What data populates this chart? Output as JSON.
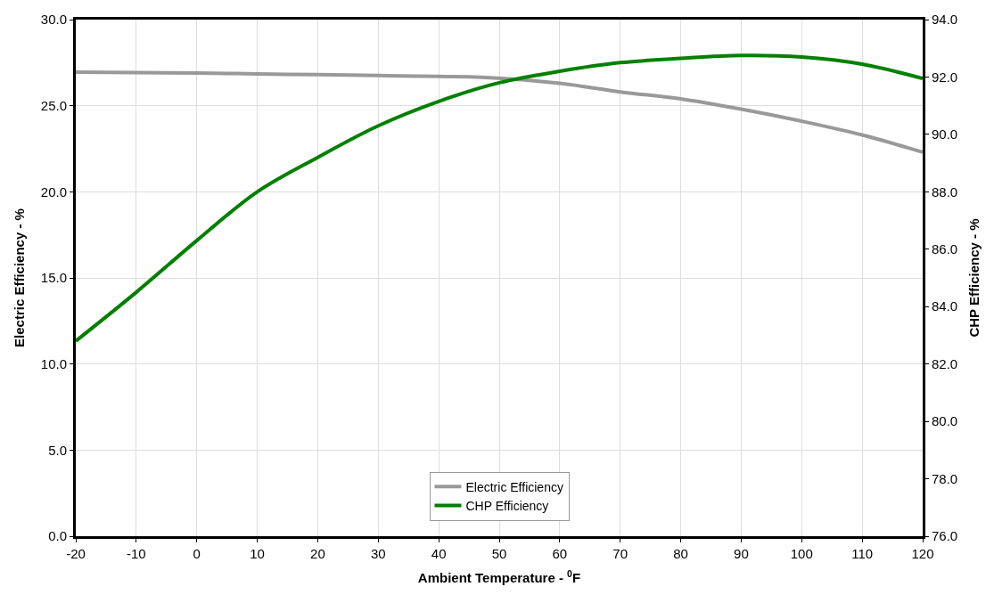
{
  "chart_data": {
    "type": "line",
    "xlabel": "Ambient Temperature - $^{0}$F",
    "ylabel": "Electric Efficiency - %",
    "y2label": "CHP Efficiency - %",
    "x": [
      -20,
      -10,
      0,
      10,
      20,
      30,
      40,
      47,
      60,
      70,
      80,
      90,
      100,
      110,
      120
    ],
    "series": [
      {
        "name": "Electric Efficiency",
        "color": "#999999",
        "values": [
          26.95,
          26.92,
          26.9,
          26.85,
          26.8,
          26.75,
          26.7,
          26.65,
          26.3,
          25.8,
          25.4,
          24.8,
          24.1,
          23.3,
          22.3
        ]
      },
      {
        "name": "CHP Efficiency",
        "color": "#008000",
        "axis": "y2",
        "x": [
          -20,
          -10,
          0,
          10,
          20,
          30,
          40,
          50,
          60,
          70,
          80,
          90,
          100,
          110,
          120
        ],
        "values": [
          82.8,
          84.5,
          86.3,
          88.0,
          89.2,
          90.3,
          91.15,
          91.8,
          92.2,
          92.5,
          92.65,
          92.75,
          92.7,
          92.45,
          91.95
        ]
      }
    ],
    "xlim": [
      -20,
      120
    ],
    "xticks": [
      -20,
      -10,
      0,
      10,
      20,
      30,
      40,
      50,
      60,
      70,
      80,
      90,
      100,
      110,
      120
    ],
    "ylim": [
      0,
      30
    ],
    "yticks": [
      {
        "value": 0,
        "label": "0.0"
      },
      {
        "value": 5,
        "label": "5.0"
      },
      {
        "value": 10,
        "label": "10.0"
      },
      {
        "value": 15,
        "label": "15.0"
      },
      {
        "value": 20,
        "label": "20.0"
      },
      {
        "value": 25,
        "label": "25.0"
      },
      {
        "value": 30,
        "label": "30.0"
      }
    ],
    "y2lim": [
      76,
      94
    ],
    "y2ticks": [
      {
        "value": 76,
        "label": "76.0"
      },
      {
        "value": 78,
        "label": "78.0"
      },
      {
        "value": 80,
        "label": "80.0"
      },
      {
        "value": 82,
        "label": "82.0"
      },
      {
        "value": 84,
        "label": "84.0"
      },
      {
        "value": 86,
        "label": "86.0"
      },
      {
        "value": 88,
        "label": "88.0"
      },
      {
        "value": 90,
        "label": "90.0"
      },
      {
        "value": 92,
        "label": "92.0"
      },
      {
        "value": 94,
        "label": "94.0"
      }
    ],
    "grid": true,
    "legend": "bottom",
    "marker": "none",
    "line_style": "solid"
  }
}
